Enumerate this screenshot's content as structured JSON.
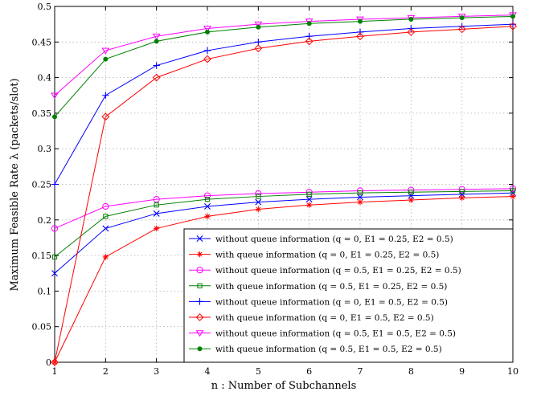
{
  "chart_data": {
    "type": "line",
    "title": "",
    "xlabel": "n : Number of Subchannels",
    "ylabel": "Maximum Feasible Rate λ (packets/slot)",
    "xlim": [
      1,
      10
    ],
    "ylim": [
      0,
      0.5
    ],
    "xticks": [
      "1",
      "2",
      "3",
      "4",
      "5",
      "6",
      "7",
      "8",
      "9",
      "10"
    ],
    "yticks": [
      "0",
      "0.05",
      "0.1",
      "0.15",
      "0.2",
      "0.25",
      "0.3",
      "0.35",
      "0.4",
      "0.45",
      "0.5"
    ],
    "grid": true,
    "legend_position": "bottom-right",
    "x": [
      1,
      2,
      3,
      4,
      5,
      6,
      7,
      8,
      9,
      10
    ],
    "series": [
      {
        "name": "without queue information (q = 0, E1 = 0.25, E2 = 0.5)",
        "color": "#0000ff",
        "marker": "x",
        "values": [
          0.125,
          0.188,
          0.209,
          0.219,
          0.225,
          0.229,
          0.232,
          0.234,
          0.236,
          0.238
        ]
      },
      {
        "name": "with queue information (q = 0, E1 = 0.25, E2 = 0.5)",
        "color": "#ff0000",
        "marker": "asterisk",
        "values": [
          0.0,
          0.148,
          0.188,
          0.205,
          0.215,
          0.221,
          0.225,
          0.228,
          0.231,
          0.233
        ]
      },
      {
        "name": "without queue information (q = 0.5, E1 = 0.25, E2 = 0.5)",
        "color": "#ff00ff",
        "marker": "circle",
        "values": [
          0.188,
          0.219,
          0.229,
          0.234,
          0.237,
          0.239,
          0.241,
          0.242,
          0.243,
          0.244
        ]
      },
      {
        "name": "with queue information (q = 0.5, E1 = 0.25, E2 = 0.5)",
        "color": "#008000",
        "marker": "square",
        "values": [
          0.148,
          0.205,
          0.221,
          0.229,
          0.233,
          0.236,
          0.238,
          0.239,
          0.24,
          0.241
        ]
      },
      {
        "name": "without queue information (q = 0, E1 = 0.5, E2 = 0.5)",
        "color": "#0000ff",
        "marker": "plus",
        "values": [
          0.25,
          0.375,
          0.417,
          0.438,
          0.45,
          0.458,
          0.464,
          0.469,
          0.472,
          0.475
        ]
      },
      {
        "name": "with queue information (q = 0, E1 = 0.5, E2 = 0.5)",
        "color": "#ff0000",
        "marker": "diamond",
        "values": [
          0.0,
          0.345,
          0.4,
          0.426,
          0.441,
          0.451,
          0.458,
          0.464,
          0.468,
          0.472
        ]
      },
      {
        "name": "without queue information (q = 0.5, E1 = 0.5, E2 = 0.5)",
        "color": "#ff00ff",
        "marker": "triangle-down",
        "values": [
          0.375,
          0.438,
          0.458,
          0.469,
          0.475,
          0.479,
          0.482,
          0.484,
          0.486,
          0.488
        ]
      },
      {
        "name": "with queue information (q = 0.5, E1 = 0.5, E2 = 0.5)",
        "color": "#008000",
        "marker": "dot",
        "values": [
          0.345,
          0.426,
          0.451,
          0.464,
          0.471,
          0.476,
          0.479,
          0.482,
          0.484,
          0.486
        ]
      }
    ]
  }
}
